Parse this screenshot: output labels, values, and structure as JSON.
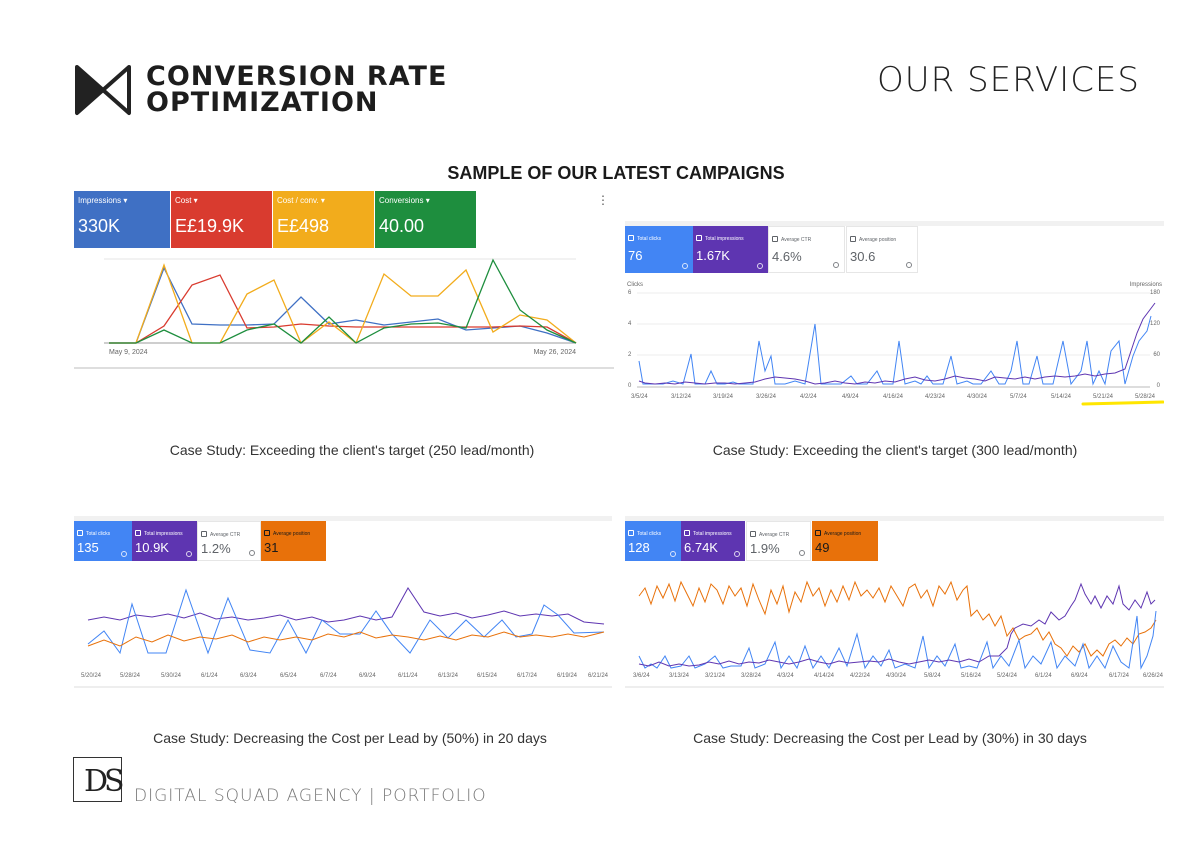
{
  "header": {
    "logo_line1": "CONVERSION RATE",
    "logo_line2": "OPTIMIZATION",
    "page_heading": "OUR SERVICES"
  },
  "section_title": "SAMPLE OF OUR LATEST CAMPAIGNS",
  "colors": {
    "blue": "#3f70c4",
    "red": "#d93b2f",
    "yellow": "#f2ac1c",
    "green": "#1e8e3e",
    "gads_blue": "#4285f4",
    "gads_purple": "#5e35b1",
    "gads_orange": "#e8710a"
  },
  "panels": [
    {
      "kpis": [
        {
          "label": "Impressions ▾",
          "value": "330K",
          "color": "#3f70c4"
        },
        {
          "label": "Cost ▾",
          "value": "E£19.9K",
          "color": "#d93b2f"
        },
        {
          "label": "Cost / conv. ▾",
          "value": "E£498",
          "color": "#f2ac1c"
        },
        {
          "label": "Conversions ▾",
          "value": "40.00",
          "color": "#1e8e3e"
        }
      ],
      "x_start": "May 9, 2024",
      "x_end": "May 26, 2024",
      "caption": "Case Study: Exceeding the client's target (250 lead/month)"
    },
    {
      "kpis": [
        {
          "label": "Total clicks",
          "value": "76",
          "color": "#4285f4"
        },
        {
          "label": "Total impressions",
          "value": "1.67K",
          "color": "#5e35b1"
        },
        {
          "label": "Average CTR",
          "value": "4.6%",
          "color": "#ffffff"
        },
        {
          "label": "Average position",
          "value": "30.6",
          "color": "#ffffff"
        }
      ],
      "left_axis_title": "Clicks",
      "right_axis_title": "Impressions",
      "left_ticks": [
        "6",
        "4",
        "2",
        "0"
      ],
      "right_ticks": [
        "180",
        "120",
        "60",
        "0"
      ],
      "x_ticks": [
        "3/5/24",
        "3/12/24",
        "3/19/24",
        "3/26/24",
        "4/2/24",
        "4/9/24",
        "4/16/24",
        "4/23/24",
        "4/30/24",
        "5/7/24",
        "5/14/24",
        "5/21/24",
        "5/28/24"
      ],
      "caption": "Case Study: Exceeding the client's target (300 lead/month)"
    },
    {
      "kpis": [
        {
          "label": "Total clicks",
          "value": "135",
          "color": "#4285f4"
        },
        {
          "label": "Total impressions",
          "value": "10.9K",
          "color": "#5e35b1"
        },
        {
          "label": "Average CTR",
          "value": "1.2%",
          "color": "#ffffff"
        },
        {
          "label": "Average position",
          "value": "31",
          "color": "#e8710a"
        }
      ],
      "x_ticks": [
        "5/20/24",
        "5/28/24",
        "5/30/24",
        "6/1/24",
        "6/3/24",
        "6/5/24",
        "6/7/24",
        "6/9/24",
        "6/11/24",
        "6/13/24",
        "6/15/24",
        "6/17/24",
        "6/19/24",
        "6/21/24"
      ],
      "caption": "Case Study: Decreasing the Cost per Lead by (50%) in 20 days"
    },
    {
      "kpis": [
        {
          "label": "Total clicks",
          "value": "128",
          "color": "#4285f4"
        },
        {
          "label": "Total impressions",
          "value": "6.74K",
          "color": "#5e35b1"
        },
        {
          "label": "Average CTR",
          "value": "1.9%",
          "color": "#ffffff"
        },
        {
          "label": "Average position",
          "value": "49",
          "color": "#e8710a"
        }
      ],
      "x_ticks": [
        "3/6/24",
        "3/13/24",
        "3/21/24",
        "3/28/24",
        "4/3/24",
        "4/14/24",
        "4/22/24",
        "4/30/24",
        "5/8/24",
        "5/16/24",
        "5/24/24",
        "6/1/24",
        "6/9/24",
        "6/17/24",
        "6/26/24"
      ],
      "caption": "Case Study: Decreasing the Cost per Lead by (30%) in 30 days"
    }
  ],
  "footer": {
    "mark": "DS",
    "text": "DIGITAL SQUAD AGENCY | PORTFOLIO"
  }
}
